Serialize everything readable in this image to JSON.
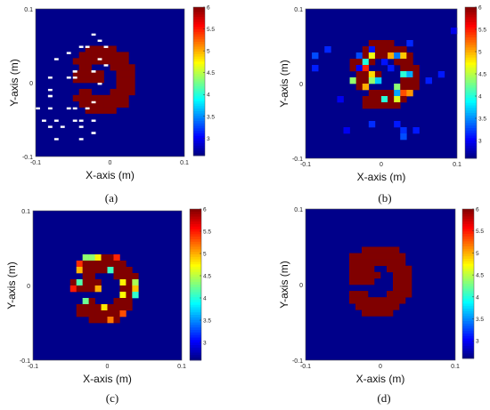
{
  "figure": {
    "panels": [
      {
        "label": "(a)"
      },
      {
        "label": "(b)"
      },
      {
        "label": "(c)"
      },
      {
        "label": "(d)"
      }
    ]
  },
  "chart_data": [
    {
      "type": "heatmap",
      "panel": "(a)",
      "xlabel": "X-axis (m)",
      "ylabel": "Y-axis (m)",
      "xlim": [
        -0.1,
        0.1
      ],
      "ylim": [
        -0.1,
        0.1
      ],
      "xticks": [
        "-0.1",
        "0",
        "0.1"
      ],
      "yticks": [
        "0.1",
        "0",
        "-0.1"
      ],
      "grid": [
        24,
        24
      ],
      "background_value": 2.6,
      "object_value": 6,
      "object": "ring with inner lobe (\"3\"-shaped), center approx (-0.01, 0.0)",
      "edge_noise": "none",
      "artifacts": "scattered white pixels in left half",
      "colorbar": {
        "min": 2.6,
        "max": 6,
        "ticks": [
          3,
          3.5,
          4,
          4.5,
          5,
          5.5,
          6
        ],
        "colormap": "jet"
      }
    },
    {
      "type": "heatmap",
      "panel": "(b)",
      "xlabel": "X-axis (m)",
      "ylabel": "Y-axis (m)",
      "xlim": [
        -0.1,
        0.1
      ],
      "ylim": [
        -0.1,
        0.1
      ],
      "xticks": [
        "-0.1",
        "0",
        "0.1"
      ],
      "yticks": [
        "0.1",
        "0",
        "-0.1"
      ],
      "grid": [
        24,
        24
      ],
      "background_value": 2.6,
      "object_value": 6,
      "object": "ring with inner lobe, rotated and noisy interior",
      "edge_noise": "heavy (values 3 to 5.5 inside object)",
      "colorbar": {
        "min": 2.6,
        "max": 6,
        "ticks": [
          3,
          3.5,
          4,
          4.5,
          5,
          5.5,
          6
        ],
        "colormap": "jet"
      }
    },
    {
      "type": "heatmap",
      "panel": "(c)",
      "xlabel": "X-axis (m)",
      "ylabel": "Y-axis (m)",
      "xlim": [
        -0.1,
        0.1
      ],
      "ylim": [
        -0.1,
        0.1
      ],
      "xticks": [
        "-0.1",
        "0",
        "0.1"
      ],
      "yticks": [
        "0.1",
        "0",
        "-0.1"
      ],
      "grid": [
        24,
        24
      ],
      "background_value": 2.6,
      "object_value": 6,
      "object": "ring with inner lobe",
      "edge_noise": "moderate (boundary pixels 4 to 5.5)",
      "colorbar": {
        "min": 2.6,
        "max": 6,
        "ticks": [
          3,
          3.5,
          4,
          4.5,
          5,
          5.5,
          6
        ],
        "colormap": "jet"
      }
    },
    {
      "type": "heatmap",
      "panel": "(d)",
      "xlabel": "X-axis (m)",
      "ylabel": "Y-axis (m)",
      "xlim": [
        -0.1,
        0.1
      ],
      "ylim": [
        -0.1,
        0.1
      ],
      "xticks": [
        "-0.1",
        "0",
        "0.1"
      ],
      "yticks": [
        "0.1",
        "0",
        "-0.1"
      ],
      "grid": [
        24,
        24
      ],
      "background_value": 2.6,
      "object_value": 6,
      "object": "ring with inner lobe, clean reconstruction",
      "edge_noise": "none",
      "colorbar": {
        "min": 2.6,
        "max": 6,
        "ticks": [
          3,
          3.5,
          4,
          4.5,
          5,
          5.5,
          6
        ],
        "colormap": "jet"
      }
    }
  ]
}
